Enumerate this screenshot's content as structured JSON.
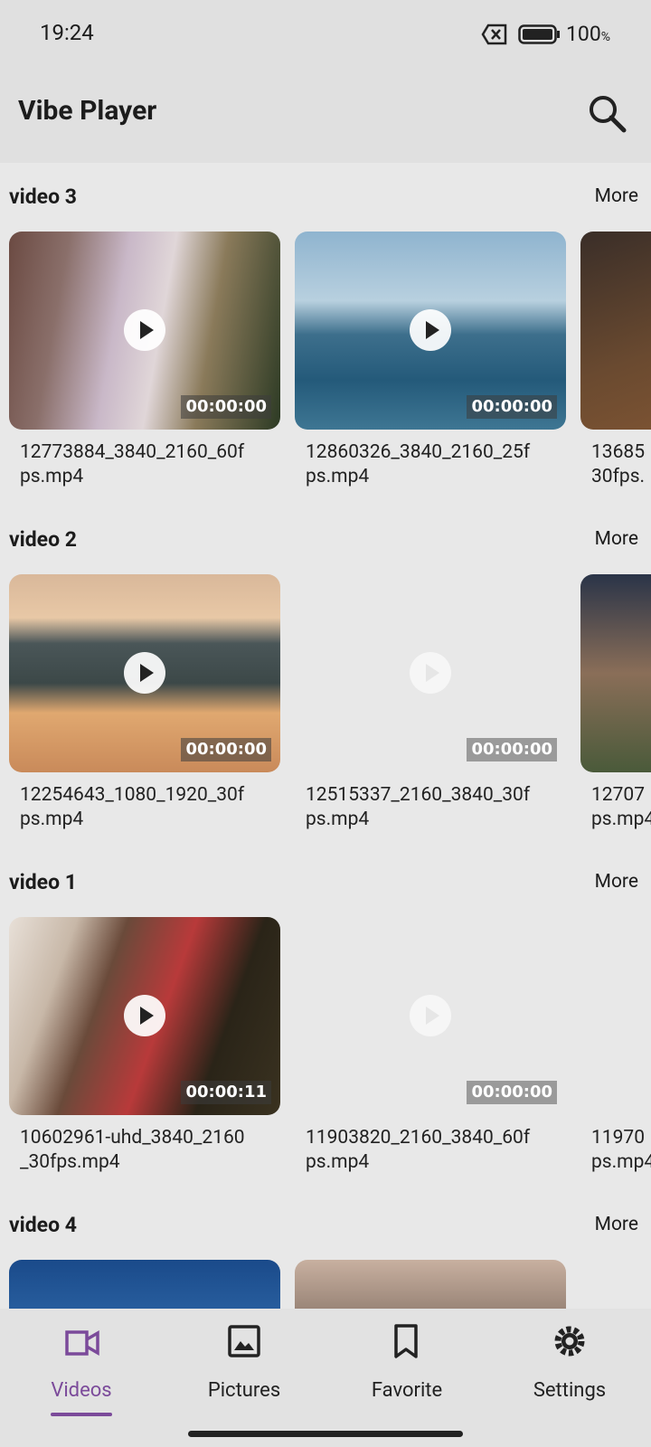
{
  "status_bar": {
    "time": "19:24",
    "battery": "100",
    "percent": "%"
  },
  "app_bar": {
    "title": "Vibe Player"
  },
  "sections": [
    {
      "title": "video 3",
      "more": "More",
      "items": [
        {
          "name_lines": [
            "12773884_3840_2160_60f",
            "ps.mp4"
          ],
          "duration": "00:00:00"
        },
        {
          "name_lines": [
            "12860326_3840_2160_25f",
            "ps.mp4"
          ],
          "duration": "00:00:00"
        },
        {
          "name_lines": [
            "13685",
            "30fps."
          ]
        }
      ]
    },
    {
      "title": "video 2",
      "more": "More",
      "items": [
        {
          "name_lines": [
            "12254643_1080_1920_30f",
            "ps.mp4"
          ],
          "duration": "00:00:00"
        },
        {
          "name_lines": [
            "12515337_2160_3840_30f",
            "ps.mp4"
          ],
          "duration": "00:00:00"
        },
        {
          "name_lines": [
            "12707",
            "ps.mp4"
          ]
        }
      ]
    },
    {
      "title": "video 1",
      "more": "More",
      "items": [
        {
          "name_lines": [
            "10602961-uhd_3840_2160",
            "_30fps.mp4"
          ],
          "duration": "00:00:11"
        },
        {
          "name_lines": [
            "11903820_2160_3840_60f",
            "ps.mp4"
          ],
          "duration": "00:00:00"
        },
        {
          "name_lines": [
            "11970",
            "ps.mp4"
          ]
        }
      ]
    },
    {
      "title": "video 4",
      "more": "More",
      "items": [
        {},
        {}
      ]
    }
  ],
  "bottom_nav": {
    "items": [
      "Videos",
      "Pictures",
      "Favorite",
      "Settings"
    ],
    "active": 0
  }
}
